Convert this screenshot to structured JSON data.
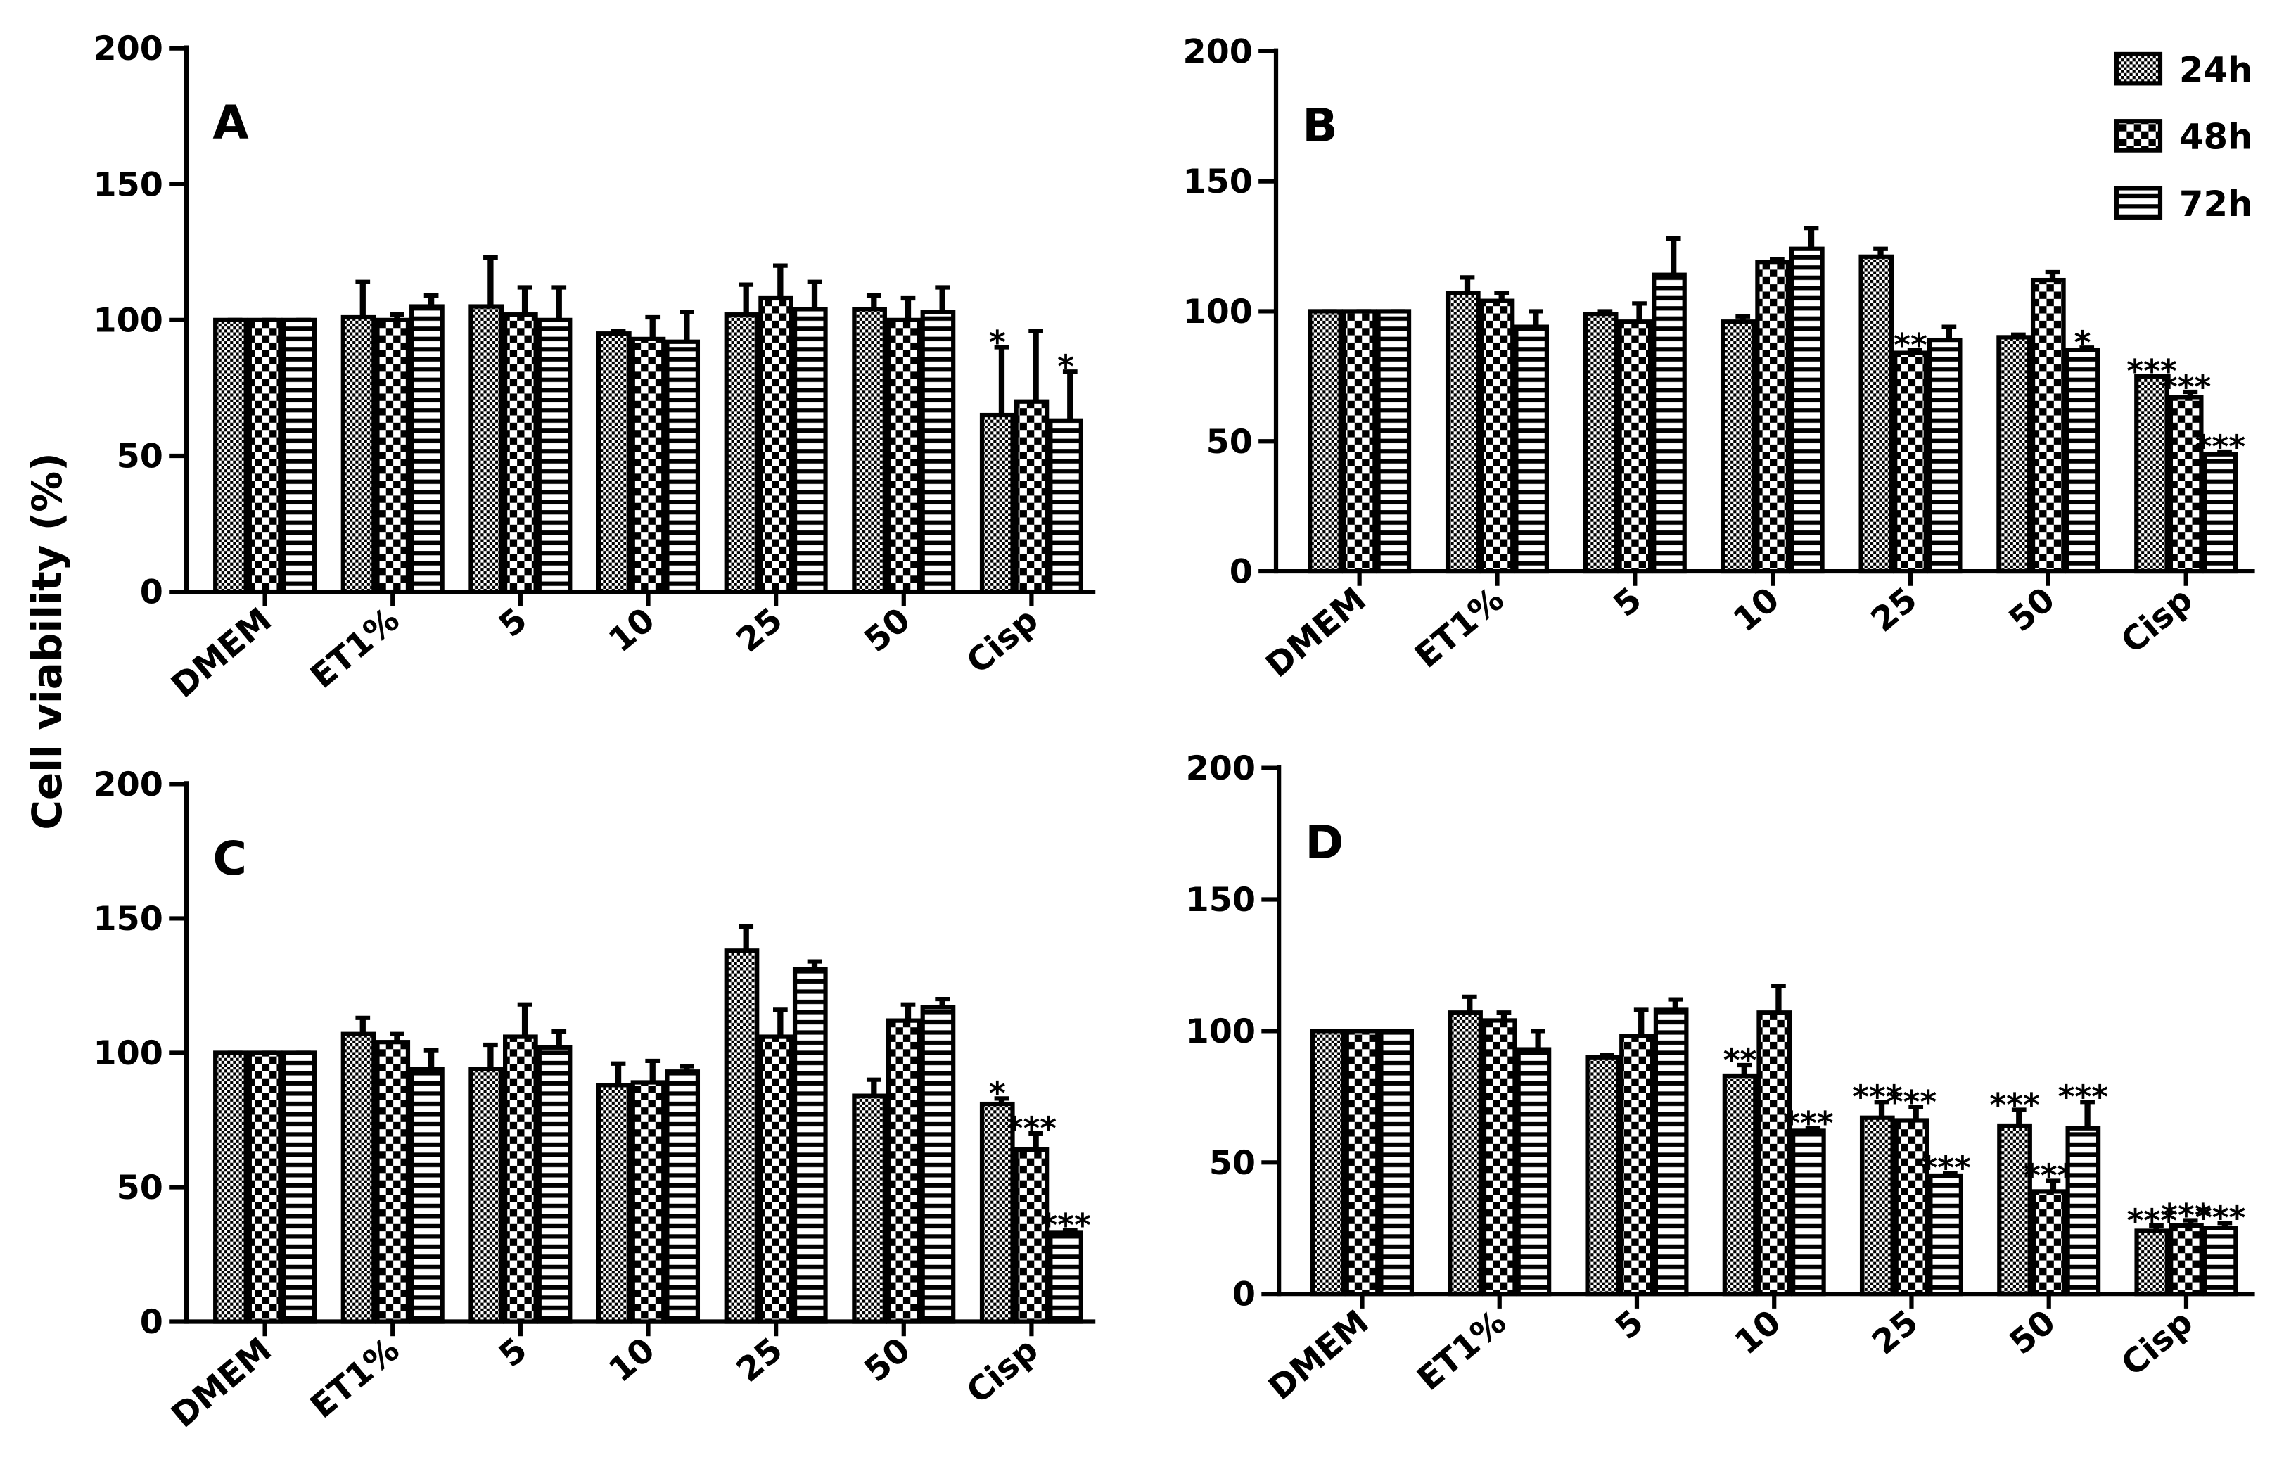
{
  "chart_data": [
    {
      "type": "bar",
      "panel_label": "A",
      "ylabel": "Cell viability (%)",
      "categories": [
        "DMEM",
        "ET1%",
        "5",
        "10",
        "25",
        "50",
        "Cisp"
      ],
      "ylim": [
        0,
        200
      ],
      "yticks": [
        0,
        50,
        100,
        150,
        200
      ],
      "series": [
        {
          "name": "24h",
          "color": "#000000",
          "pattern": "fine-checker",
          "values": [
            100,
            101,
            105,
            95,
            102,
            104,
            65
          ],
          "errors": [
            0,
            13,
            18,
            1,
            11,
            5,
            25
          ],
          "labels": [
            null,
            null,
            null,
            null,
            null,
            null,
            "*"
          ]
        },
        {
          "name": "48h",
          "color": "#000000",
          "pattern": "checker",
          "values": [
            100,
            100,
            102,
            93,
            108,
            100,
            70
          ],
          "errors": [
            0,
            2,
            10,
            8,
            12,
            8,
            26
          ],
          "labels": [
            null,
            null,
            null,
            null,
            null,
            null,
            null
          ]
        },
        {
          "name": "72h",
          "color": "#000000",
          "pattern": "stripes",
          "values": [
            100,
            105,
            100,
            92,
            104,
            103,
            63
          ],
          "errors": [
            0,
            4,
            12,
            11,
            10,
            9,
            18
          ],
          "labels": [
            null,
            null,
            null,
            null,
            null,
            null,
            "*"
          ]
        }
      ]
    },
    {
      "type": "bar",
      "panel_label": "B",
      "legend": "top-right",
      "categories": [
        "DMEM",
        "ET1%",
        "5",
        "10",
        "25",
        "50",
        "Cisp"
      ],
      "ylim": [
        0,
        200
      ],
      "yticks": [
        0,
        50,
        100,
        150,
        200
      ],
      "series": [
        {
          "name": "24h",
          "color": "#000000",
          "pattern": "fine-checker",
          "values": [
            100,
            107,
            99,
            96,
            121,
            90,
            75
          ],
          "errors": [
            0,
            6,
            1,
            2,
            3,
            1,
            0
          ],
          "labels": [
            null,
            null,
            null,
            null,
            null,
            null,
            "***"
          ]
        },
        {
          "name": "48h",
          "color": "#000000",
          "pattern": "checker",
          "values": [
            100,
            104,
            96,
            119,
            84,
            112,
            67
          ],
          "errors": [
            0,
            3,
            7,
            1,
            1,
            3,
            2
          ],
          "labels": [
            null,
            null,
            null,
            null,
            "**",
            null,
            "***"
          ]
        },
        {
          "name": "72h",
          "color": "#000000",
          "pattern": "stripes",
          "values": [
            100,
            94,
            114,
            124,
            89,
            85,
            45
          ],
          "errors": [
            0,
            6,
            14,
            8,
            5,
            1,
            1
          ],
          "labels": [
            null,
            null,
            null,
            null,
            null,
            "*",
            "***"
          ]
        }
      ]
    },
    {
      "type": "bar",
      "panel_label": "C",
      "categories": [
        "DMEM",
        "ET1%",
        "5",
        "10",
        "25",
        "50",
        "Cisp"
      ],
      "ylim": [
        0,
        200
      ],
      "yticks": [
        0,
        50,
        100,
        150,
        200
      ],
      "series": [
        {
          "name": "24h",
          "color": "#000000",
          "pattern": "fine-checker",
          "values": [
            100,
            107,
            94,
            88,
            138,
            84,
            81
          ],
          "errors": [
            0,
            6,
            9,
            8,
            9,
            6,
            2
          ],
          "labels": [
            null,
            null,
            null,
            null,
            null,
            null,
            "*"
          ]
        },
        {
          "name": "48h",
          "color": "#000000",
          "pattern": "checker",
          "values": [
            100,
            104,
            106,
            89,
            106,
            112,
            64
          ],
          "errors": [
            0,
            3,
            12,
            8,
            10,
            6,
            6
          ],
          "labels": [
            null,
            null,
            null,
            null,
            null,
            null,
            "***"
          ]
        },
        {
          "name": "72h",
          "color": "#000000",
          "pattern": "stripes",
          "values": [
            100,
            94,
            102,
            93,
            131,
            117,
            33
          ],
          "errors": [
            0,
            7,
            6,
            2,
            3,
            3,
            1
          ],
          "labels": [
            null,
            null,
            null,
            null,
            null,
            null,
            "***"
          ]
        }
      ]
    },
    {
      "type": "bar",
      "panel_label": "D",
      "categories": [
        "DMEM",
        "ET1%",
        "5",
        "10",
        "25",
        "50",
        "Cisp"
      ],
      "ylim": [
        0,
        200
      ],
      "yticks": [
        0,
        50,
        100,
        150,
        200
      ],
      "series": [
        {
          "name": "24h",
          "color": "#000000",
          "pattern": "fine-checker",
          "values": [
            100,
            107,
            90,
            83,
            67,
            64,
            24
          ],
          "errors": [
            0,
            6,
            1,
            4,
            6,
            6,
            2
          ],
          "labels": [
            null,
            null,
            null,
            "**",
            "***",
            "***",
            "***"
          ]
        },
        {
          "name": "48h",
          "color": "#000000",
          "pattern": "checker",
          "values": [
            100,
            104,
            98,
            107,
            66,
            39,
            26
          ],
          "errors": [
            0,
            3,
            10,
            10,
            5,
            4,
            2
          ],
          "labels": [
            null,
            null,
            null,
            null,
            "***",
            "***",
            "***"
          ]
        },
        {
          "name": "72h",
          "color": "#000000",
          "pattern": "stripes",
          "values": [
            100,
            93,
            108,
            62,
            45,
            63,
            25
          ],
          "errors": [
            0,
            7,
            4,
            1,
            1,
            10,
            2
          ],
          "labels": [
            null,
            null,
            null,
            "***",
            "***",
            "***",
            "***"
          ]
        }
      ]
    }
  ]
}
